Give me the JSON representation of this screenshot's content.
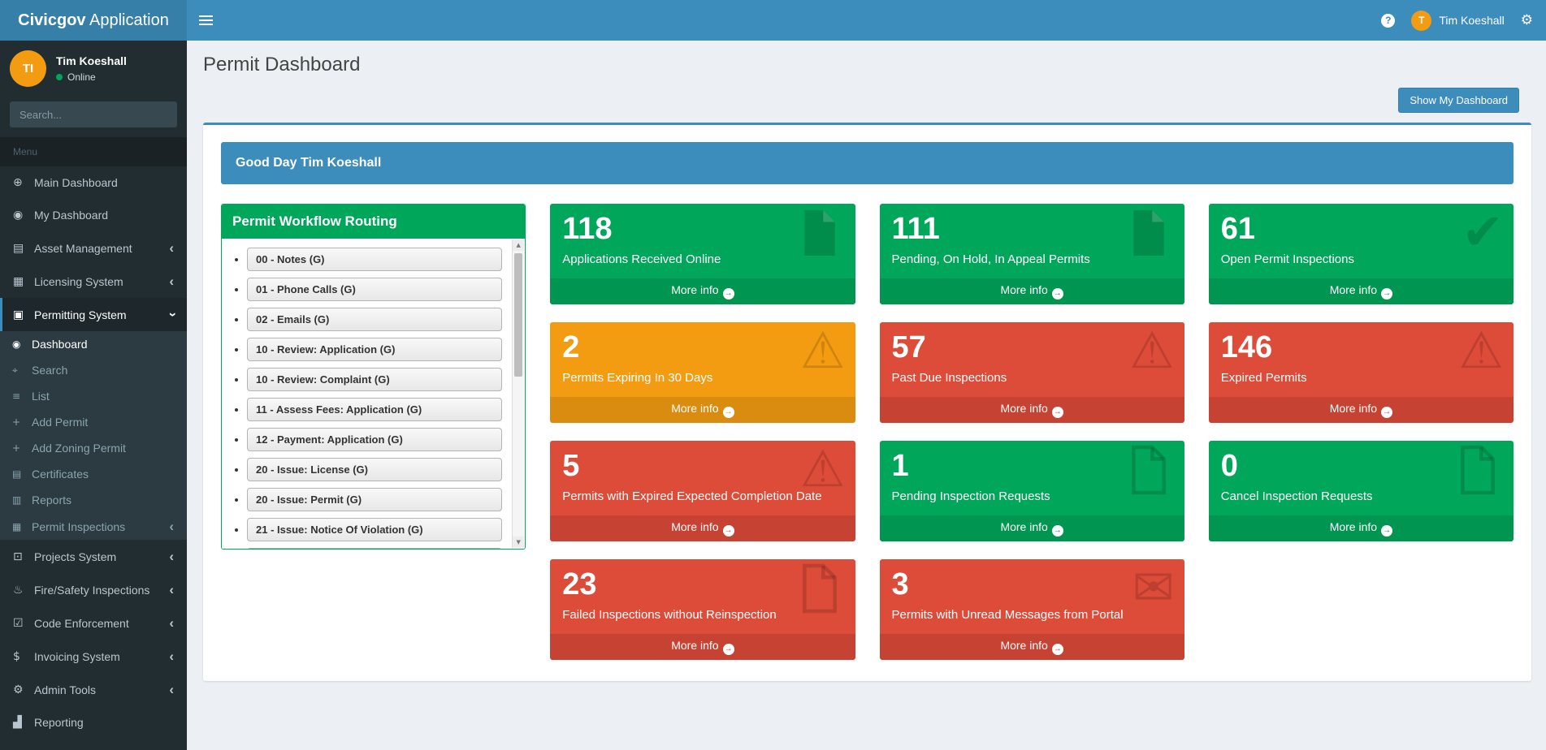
{
  "header": {
    "brand_bold": "Civicgov",
    "brand_rest": " Application",
    "user_name": "Tim Koeshall",
    "user_initial": "T"
  },
  "sidebar": {
    "user": {
      "initials": "TI",
      "name": "Tim Koeshall",
      "status": "Online"
    },
    "search_placeholder": "Search...",
    "menu_header": "Menu",
    "items": [
      {
        "label": "Main Dashboard",
        "icon": "globe-icon",
        "glyph": "⊕"
      },
      {
        "label": "My Dashboard",
        "icon": "dashboard-icon",
        "glyph": "◉"
      },
      {
        "label": "Asset Management",
        "icon": "asset-management-icon",
        "glyph": "▤",
        "chevron": true
      },
      {
        "label": "Licensing System",
        "icon": "licensing-icon",
        "glyph": "▦",
        "chevron": true
      },
      {
        "label": "Permitting System",
        "icon": "permitting-icon",
        "glyph": "▣",
        "chevron": "down",
        "active": true,
        "children": [
          {
            "label": "Dashboard",
            "icon": "dashboard-icon",
            "glyph": "◉",
            "active": true
          },
          {
            "label": "Search",
            "icon": "search-icon",
            "glyph": "⌖"
          },
          {
            "label": "List",
            "icon": "list-icon",
            "glyph": "≡"
          },
          {
            "label": "Add Permit",
            "icon": "plus-icon",
            "glyph": "+"
          },
          {
            "label": "Add Zoning Permit",
            "icon": "plus-icon",
            "glyph": "+"
          },
          {
            "label": "Certificates",
            "icon": "certificate-icon",
            "glyph": "▤"
          },
          {
            "label": "Reports",
            "icon": "reports-icon",
            "glyph": "▥"
          },
          {
            "label": "Permit Inspections",
            "icon": "inspections-icon",
            "glyph": "▦",
            "chevron": true
          }
        ]
      },
      {
        "label": "Projects System",
        "icon": "projects-icon",
        "glyph": "⊡",
        "chevron": true
      },
      {
        "label": "Fire/Safety Inspections",
        "icon": "fire-safety-icon",
        "glyph": "♨",
        "chevron": true
      },
      {
        "label": "Code Enforcement",
        "icon": "code-enforcement-icon",
        "glyph": "☑",
        "chevron": true
      },
      {
        "label": "Invoicing System",
        "icon": "dollar-icon",
        "glyph": "$",
        "chevron": true
      },
      {
        "label": "Admin Tools",
        "icon": "gear-icon",
        "glyph": "⚙",
        "chevron": true
      },
      {
        "label": "Reporting",
        "icon": "bar-chart-icon",
        "glyph": "▟"
      }
    ]
  },
  "content": {
    "page_title": "Permit Dashboard",
    "show_dashboard_button": "Show My Dashboard",
    "greeting": "Good Day Tim Koeshall",
    "workflow": {
      "title": "Permit Workflow Routing",
      "buttons": [
        "00 - Notes (G)",
        "01 - Phone Calls (G)",
        "02 - Emails (G)",
        "10 - Review: Application (G)",
        "10 - Review: Complaint (G)",
        "11 - Assess Fees: Application (G)",
        "12 - Payment: Application (G)",
        "20 - Issue: License (G)",
        "20 - Issue: Permit (G)",
        "21 - Issue: Notice Of Violation (G)",
        ""
      ]
    },
    "more_info_label": "More info",
    "info_boxes": [
      {
        "value": "118",
        "label": "Applications Received Online",
        "color": "green",
        "icon": "file-icon"
      },
      {
        "value": "111",
        "label": "Pending, On Hold, In Appeal Permits",
        "color": "green",
        "icon": "file-icon"
      },
      {
        "value": "61",
        "label": "Open Permit Inspections",
        "color": "green",
        "icon": "check-icon"
      },
      {
        "value": "2",
        "label": "Permits Expiring In 30 Days",
        "color": "yellow",
        "icon": "warning-icon"
      },
      {
        "value": "57",
        "label": "Past Due Inspections",
        "color": "red",
        "icon": "warning-icon"
      },
      {
        "value": "146",
        "label": "Expired Permits",
        "color": "red",
        "icon": "warning-icon"
      },
      {
        "value": "5",
        "label": "Permits with Expired Expected Completion Date",
        "color": "red",
        "icon": "warning-icon"
      },
      {
        "value": "1",
        "label": "Pending Inspection Requests",
        "color": "green",
        "icon": "file-outline-icon"
      },
      {
        "value": "0",
        "label": "Cancel Inspection Requests",
        "color": "green",
        "icon": "file-outline-icon"
      },
      {
        "value": "23",
        "label": "Failed Inspections without Reinspection",
        "color": "red",
        "icon": "file-outline-icon"
      },
      {
        "value": "3",
        "label": "Permits with Unread Messages from Portal",
        "color": "red",
        "icon": "envelope-icon"
      }
    ]
  },
  "icons": {
    "help_glyph": "?",
    "gears_glyph": "⚙",
    "chevron_glyph": "‹",
    "scroll_up_glyph": "▲",
    "scroll_down_glyph": "▼",
    "more_info_arrow": "→",
    "check_glyph": "✔",
    "warning_glyph": "⚠",
    "envelope_glyph": "✉"
  },
  "colors": {
    "navbar_blue": "#3c8dbc",
    "brand_bg": "#367fa9",
    "sidebar_bg": "#222d32",
    "green": "#00a65a",
    "yellow": "#f39c12",
    "red": "#dd4b39",
    "avatar_orange": "#f39c12",
    "content_bg": "#ecf0f5"
  }
}
